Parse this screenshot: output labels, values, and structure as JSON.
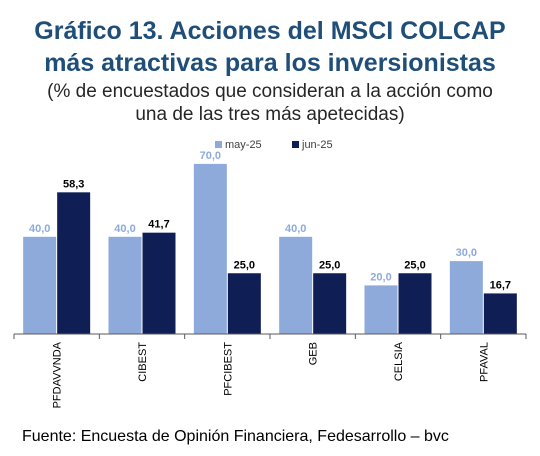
{
  "header": {
    "title_line1": "Gráfico 13. Acciones del MSCI COLCAP",
    "title_line2": "más atractivas para los inversionistas",
    "subtitle_line1": "(% de encuestados que consideran a la acción como",
    "subtitle_line2": "una de las tres más apetecidas)"
  },
  "footer": {
    "source": "Fuente: Encuesta de Opinión Financiera, Fedesarrollo – bvc"
  },
  "chart_data": {
    "type": "bar",
    "categories": [
      "PFDAVVNDA",
      "CIBEST",
      "PFCIBEST",
      "GEB",
      "CELSIA",
      "PFAVAL"
    ],
    "series": [
      {
        "name": "may-25",
        "color": "#8eaadb",
        "values": [
          40.0,
          40.0,
          70.0,
          40.0,
          20.0,
          30.0
        ],
        "labels": [
          "40,0",
          "40,0",
          "70,0",
          "40,0",
          "20,0",
          "30,0"
        ]
      },
      {
        "name": "jun-25",
        "color": "#0f1f55",
        "values": [
          58.3,
          41.7,
          25.0,
          25.0,
          25.0,
          16.7
        ],
        "labels": [
          "58,3",
          "41,7",
          "25,0",
          "25,0",
          "25,0",
          "16,7"
        ]
      }
    ],
    "legend_position": "top-center",
    "grid": false,
    "ylim": [
      0,
      70
    ]
  }
}
